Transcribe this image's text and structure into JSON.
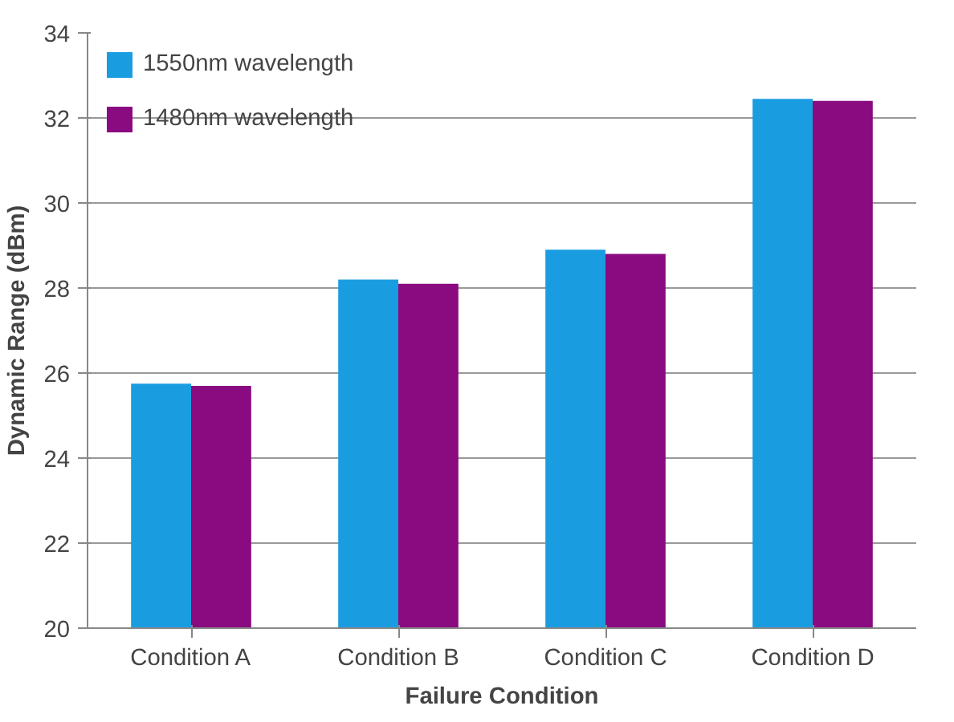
{
  "chart_data": {
    "type": "bar",
    "xlabel": "Failure Condition",
    "ylabel": "Dynamic Range (dBm)",
    "categories": [
      "Condition A",
      "Condition B",
      "Condition C",
      "Condition D"
    ],
    "series": [
      {
        "name": "1550nm wavelength",
        "color": "#1a9de0",
        "values": [
          25.75,
          28.2,
          28.9,
          32.45
        ]
      },
      {
        "name": "1480nm wavelength",
        "color": "#8a0a80",
        "values": [
          25.7,
          28.1,
          28.8,
          32.4
        ]
      }
    ],
    "ylim": [
      20,
      34
    ],
    "yticks": [
      20,
      22,
      24,
      26,
      28,
      30,
      32,
      34
    ],
    "grid": "y",
    "legend": "top left"
  }
}
